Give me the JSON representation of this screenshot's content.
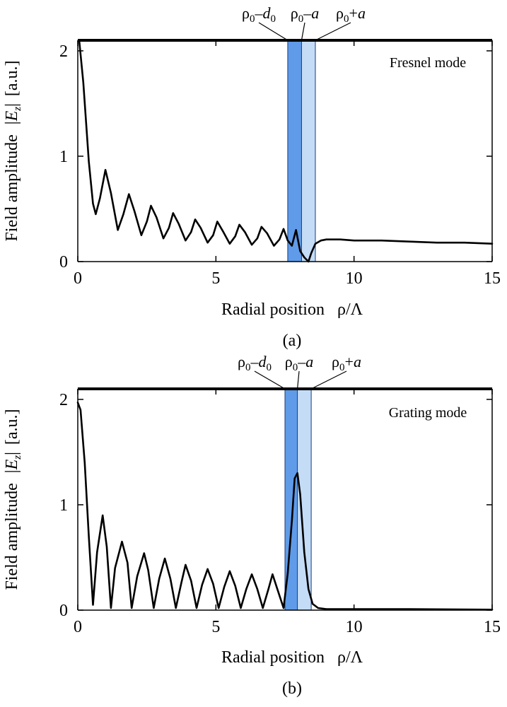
{
  "chart_data": [
    {
      "type": "line",
      "panel_label": "(a)",
      "mode_label": "Fresnel mode",
      "xlabel": "Radial position",
      "xlabel_symbol": "ρ/Λ",
      "ylabel": "Field amplitude",
      "ylabel_symbol": "E",
      "ylabel_symbol_sub": "z",
      "ylabel_units": "[a.u.]",
      "xlim": [
        0,
        15
      ],
      "ylim": [
        0,
        2.1
      ],
      "xticks": [
        0,
        5,
        10,
        15
      ],
      "yticks": [
        0,
        1,
        2
      ],
      "regions": [
        {
          "name": "core",
          "from": 7.6,
          "to": 8.1,
          "color": "#5f9be8"
        },
        {
          "name": "cladding",
          "from": 8.1,
          "to": 8.6,
          "color": "#c4dcf6"
        }
      ],
      "boundary_labels": [
        {
          "text": "ρ",
          "sub": "0",
          "op": "–",
          "var": "d",
          "var_sub": "0",
          "x": 7.6
        },
        {
          "text": "ρ",
          "sub": "0",
          "op": "–",
          "var": "a",
          "var_sub": "",
          "x": 8.1
        },
        {
          "text": "ρ",
          "sub": "0",
          "op": "+",
          "var": "a",
          "var_sub": "",
          "x": 8.6
        }
      ],
      "series": [
        {
          "name": "|Ez|",
          "x": [
            0.05,
            0.2,
            0.4,
            0.55,
            0.65,
            0.8,
            1.0,
            1.2,
            1.45,
            1.65,
            1.85,
            2.05,
            2.3,
            2.5,
            2.65,
            2.85,
            3.1,
            3.3,
            3.45,
            3.65,
            3.9,
            4.1,
            4.25,
            4.45,
            4.7,
            4.9,
            5.05,
            5.25,
            5.5,
            5.7,
            5.85,
            6.05,
            6.3,
            6.5,
            6.65,
            6.85,
            7.1,
            7.3,
            7.45,
            7.6,
            7.75,
            7.9,
            8.05,
            8.2,
            8.35,
            8.45,
            8.6,
            8.8,
            9.0,
            9.5,
            10,
            11,
            12,
            13,
            14,
            15
          ],
          "y": [
            2.1,
            1.7,
            0.95,
            0.55,
            0.45,
            0.6,
            0.87,
            0.65,
            0.3,
            0.45,
            0.64,
            0.48,
            0.25,
            0.38,
            0.53,
            0.42,
            0.22,
            0.32,
            0.46,
            0.36,
            0.2,
            0.28,
            0.4,
            0.32,
            0.18,
            0.25,
            0.38,
            0.29,
            0.17,
            0.24,
            0.35,
            0.28,
            0.16,
            0.22,
            0.33,
            0.27,
            0.15,
            0.21,
            0.31,
            0.2,
            0.15,
            0.3,
            0.1,
            0.04,
            0.0,
            0.08,
            0.17,
            0.2,
            0.21,
            0.21,
            0.2,
            0.2,
            0.19,
            0.18,
            0.18,
            0.17
          ]
        }
      ]
    },
    {
      "type": "line",
      "panel_label": "(b)",
      "mode_label": "Grating mode",
      "xlabel": "Radial position",
      "xlabel_symbol": "ρ/Λ",
      "ylabel": "Field amplitude",
      "ylabel_symbol": "E",
      "ylabel_symbol_sub": "z",
      "ylabel_units": "[a.u.]",
      "xlim": [
        0,
        15
      ],
      "ylim": [
        0,
        2.1
      ],
      "xticks": [
        0,
        5,
        10,
        15
      ],
      "yticks": [
        0,
        1,
        2
      ],
      "regions": [
        {
          "name": "core",
          "from": 7.5,
          "to": 7.95,
          "color": "#5f9be8"
        },
        {
          "name": "cladding",
          "from": 7.95,
          "to": 8.45,
          "color": "#c4dcf6"
        }
      ],
      "boundary_labels": [
        {
          "text": "ρ",
          "sub": "0",
          "op": "–",
          "var": "d",
          "var_sub": "0",
          "x": 7.5
        },
        {
          "text": "ρ",
          "sub": "0",
          "op": "–",
          "var": "a",
          "var_sub": "",
          "x": 7.95
        },
        {
          "text": "ρ",
          "sub": "0",
          "op": "+",
          "var": "a",
          "var_sub": "",
          "x": 8.45
        }
      ],
      "series": [
        {
          "name": "|Ez|",
          "x": [
            0.0,
            0.1,
            0.25,
            0.4,
            0.55,
            0.7,
            0.9,
            1.05,
            1.2,
            1.35,
            1.6,
            1.8,
            1.95,
            2.15,
            2.4,
            2.55,
            2.75,
            2.95,
            3.15,
            3.35,
            3.55,
            3.75,
            3.9,
            4.1,
            4.3,
            4.5,
            4.7,
            4.9,
            5.1,
            5.3,
            5.5,
            5.7,
            5.9,
            6.1,
            6.3,
            6.5,
            6.7,
            6.9,
            7.05,
            7.25,
            7.45,
            7.6,
            7.75,
            7.85,
            7.95,
            8.05,
            8.2,
            8.35,
            8.5,
            8.7,
            9.0,
            9.5,
            10,
            12,
            15
          ],
          "y": [
            1.97,
            1.9,
            1.4,
            0.7,
            0.05,
            0.55,
            0.9,
            0.6,
            0.02,
            0.4,
            0.65,
            0.45,
            0.02,
            0.32,
            0.54,
            0.38,
            0.02,
            0.3,
            0.49,
            0.3,
            0.02,
            0.26,
            0.43,
            0.28,
            0.02,
            0.24,
            0.39,
            0.25,
            0.02,
            0.22,
            0.37,
            0.23,
            0.02,
            0.2,
            0.34,
            0.2,
            0.02,
            0.2,
            0.34,
            0.18,
            0.02,
            0.35,
            0.85,
            1.25,
            1.3,
            1.1,
            0.55,
            0.2,
            0.06,
            0.02,
            0.01,
            0.01,
            0.01,
            0.01,
            0.005
          ]
        }
      ]
    }
  ]
}
